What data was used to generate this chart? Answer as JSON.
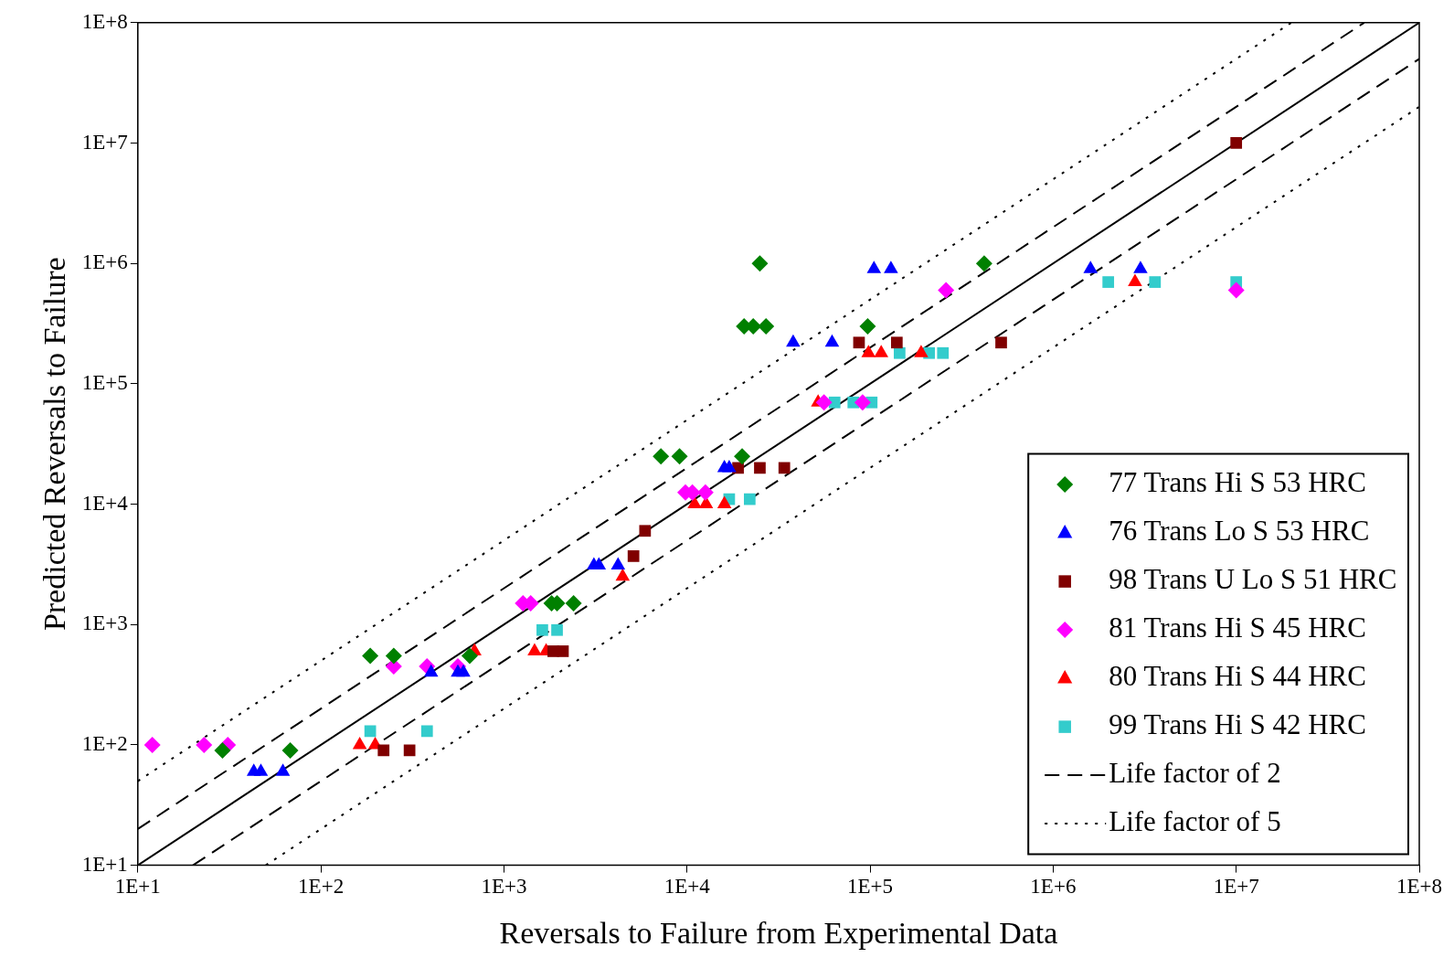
{
  "chart_data": {
    "type": "scatter",
    "xlabel": "Reversals to Failure from Experimental Data",
    "ylabel": "Predicted Reversals to Failure",
    "log": "xy",
    "grid": false,
    "legend": "bottom right",
    "xlim": [
      10,
      100000000
    ],
    "ylim": [
      10,
      100000000
    ],
    "xticks": [
      {
        "value": 10,
        "label": "1E+1"
      },
      {
        "value": 100,
        "label": "1E+2"
      },
      {
        "value": 1000,
        "label": "1E+3"
      },
      {
        "value": 10000,
        "label": "1E+4"
      },
      {
        "value": 100000,
        "label": "1E+5"
      },
      {
        "value": 1000000,
        "label": "1E+6"
      },
      {
        "value": 10000000,
        "label": "1E+7"
      },
      {
        "value": 100000000,
        "label": "1E+8"
      }
    ],
    "yticks": [
      {
        "value": 10,
        "label": "1E+1"
      },
      {
        "value": 100,
        "label": "1E+2"
      },
      {
        "value": 1000,
        "label": "1E+3"
      },
      {
        "value": 10000,
        "label": "1E+4"
      },
      {
        "value": 100000,
        "label": "1E+5"
      },
      {
        "value": 1000000,
        "label": "1E+6"
      },
      {
        "value": 10000000,
        "label": "1E+7"
      },
      {
        "value": 100000000,
        "label": "1E+8"
      }
    ],
    "series": [
      {
        "name": "77 Trans Hi S 53 HRC",
        "type": "scatter",
        "marker": "diamond",
        "color": "#008000",
        "x": [
          186,
          250,
          29,
          68,
          650,
          1820,
          1950,
          2400,
          7200,
          9100,
          20000,
          25000,
          20500,
          23000,
          27000,
          97000,
          420000
        ],
        "values": [
          550,
          550,
          90,
          90,
          550,
          1500,
          1500,
          1500,
          25000,
          25000,
          25000,
          1000000,
          300000,
          300000,
          300000,
          300000,
          1000000
        ]
      },
      {
        "name": "76 Trans Lo S 53 HRC",
        "type": "scatter",
        "marker": "triangle",
        "color": "#0000ff",
        "x": [
          43,
          47,
          62,
          400,
          560,
          600,
          3100,
          3300,
          4200,
          16000,
          17000,
          38000,
          62000,
          105000,
          130000,
          1600000,
          3000000
        ],
        "values": [
          60,
          60,
          60,
          400,
          400,
          400,
          3100,
          3100,
          3100,
          20000,
          20000,
          220000,
          220000,
          900000,
          900000,
          900000,
          900000
        ]
      },
      {
        "name": "98 Trans U Lo S 51 HRC",
        "type": "scatter",
        "marker": "square",
        "color": "#800000",
        "x": [
          220,
          305,
          1860,
          2100,
          5100,
          5900,
          19000,
          25000,
          34000,
          87000,
          140000,
          520000,
          10000000
        ],
        "values": [
          90,
          90,
          600,
          600,
          3700,
          6000,
          20000,
          20000,
          20000,
          220000,
          220000,
          220000,
          10000000
        ]
      },
      {
        "name": "81 Trans Hi S 45 HRC",
        "type": "scatter",
        "marker": "diamond",
        "color": "#ff00ff",
        "x": [
          12,
          23,
          31,
          250,
          380,
          560,
          1270,
          1400,
          9800,
          10700,
          12600,
          56000,
          91000,
          260000,
          10000000
        ],
        "values": [
          100,
          100,
          100,
          450,
          450,
          450,
          1500,
          1500,
          12500,
          12500,
          12500,
          70000,
          70000,
          600000,
          600000
        ]
      },
      {
        "name": "80 Trans Hi S 44 HRC",
        "type": "scatter",
        "marker": "triangle",
        "color": "#ff0000",
        "x": [
          163,
          198,
          690,
          1470,
          1700,
          4450,
          11000,
          12700,
          16000,
          52000,
          98000,
          115000,
          190000,
          2800000
        ],
        "values": [
          100,
          100,
          600,
          600,
          600,
          2500,
          10000,
          10000,
          10000,
          70000,
          180000,
          180000,
          180000,
          700000
        ]
      },
      {
        "name": "99 Trans Hi S 42 HRC",
        "type": "scatter",
        "marker": "square",
        "color": "#33cccc",
        "x": [
          186,
          380,
          1620,
          1950,
          17000,
          22000,
          64000,
          81000,
          102000,
          145000,
          210000,
          250000,
          2000000,
          3600000,
          10000000
        ],
        "values": [
          130,
          130,
          900,
          900,
          11000,
          11000,
          70000,
          70000,
          70000,
          180000,
          180000,
          180000,
          700000,
          700000,
          700000
        ]
      },
      {
        "type": "line",
        "marker": "none",
        "line_style": "solid",
        "color": "#000000",
        "x": [
          10,
          100000000
        ],
        "values": [
          10,
          100000000
        ]
      },
      {
        "name": "Life factor of 2",
        "type": "line",
        "marker": "none",
        "line_style": "dashed",
        "color": "#000000",
        "x": [
          10,
          50000000
        ],
        "values": [
          20,
          100000000
        ]
      },
      {
        "type": "line",
        "marker": "none",
        "line_style": "dashed",
        "color": "#000000",
        "x": [
          20,
          100000000
        ],
        "values": [
          10,
          50000000
        ]
      },
      {
        "name": "Life factor of 5",
        "type": "line",
        "marker": "none",
        "line_style": "dotted",
        "color": "#000000",
        "x": [
          10,
          20000000
        ],
        "values": [
          50,
          100000000
        ]
      },
      {
        "type": "line",
        "marker": "none",
        "line_style": "dotted",
        "color": "#000000",
        "x": [
          50,
          100000000
        ],
        "values": [
          10,
          20000000
        ]
      }
    ]
  }
}
